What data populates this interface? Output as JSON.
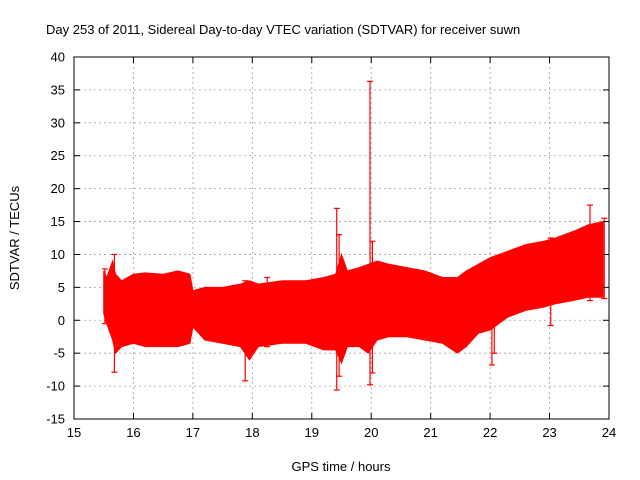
{
  "chart_data": {
    "type": "area",
    "title": "Day 253 of 2011, Sidereal Day-to-day VTEC variation (SDTVAR) for receiver suwn",
    "xlabel": "GPS time / hours",
    "ylabel": "SDTVAR / TECUs",
    "xlim": [
      15,
      24
    ],
    "ylim": [
      -15,
      40
    ],
    "xticks": [
      15,
      16,
      17,
      18,
      19,
      20,
      21,
      22,
      23,
      24
    ],
    "yticks": [
      -15,
      -10,
      -5,
      0,
      5,
      10,
      15,
      20,
      25,
      30,
      35,
      40
    ],
    "grid": true,
    "series_color": "#ff0000",
    "series": [
      {
        "name": "SDTVAR",
        "x": [
          15.5,
          15.55,
          15.65,
          15.7,
          15.8,
          16.0,
          16.2,
          16.5,
          16.75,
          16.95,
          17.0,
          17.2,
          17.5,
          17.8,
          17.95,
          18.1,
          18.5,
          18.9,
          19.2,
          19.4,
          19.5,
          19.6,
          19.8,
          19.95,
          20.1,
          20.3,
          20.6,
          20.9,
          21.2,
          21.45,
          21.6,
          21.8,
          22.0,
          22.3,
          22.6,
          22.9,
          23.1,
          23.4,
          23.65,
          23.9
        ],
        "upper": [
          7.5,
          6.5,
          9.0,
          7.0,
          6.0,
          7.0,
          7.2,
          7.0,
          7.5,
          7.0,
          4.5,
          5.0,
          5.0,
          5.5,
          6.0,
          5.5,
          6.0,
          6.0,
          6.5,
          7.0,
          10.0,
          7.5,
          8.0,
          8.5,
          9.0,
          8.5,
          8.0,
          7.5,
          6.5,
          6.5,
          7.5,
          8.5,
          9.5,
          10.5,
          11.5,
          12.0,
          12.5,
          13.5,
          14.5,
          15.0
        ],
        "lower": [
          1.0,
          -0.5,
          -3.0,
          -5.0,
          -4.0,
          -3.5,
          -4.0,
          -4.0,
          -4.0,
          -3.5,
          -1.0,
          -3.0,
          -3.5,
          -4.0,
          -6.0,
          -4.0,
          -3.5,
          -3.5,
          -4.5,
          -4.5,
          -6.5,
          -4.0,
          -4.0,
          -5.0,
          -3.0,
          -2.5,
          -2.5,
          -3.0,
          -3.5,
          -5.0,
          -4.0,
          -2.0,
          -1.5,
          0.5,
          1.5,
          2.0,
          2.5,
          3.0,
          3.5,
          3.5
        ]
      }
    ],
    "spikes": [
      {
        "x": 15.52,
        "ymin": -0.5,
        "ymax": 7.8
      },
      {
        "x": 15.68,
        "ymin": -7.9,
        "ymax": 10.0
      },
      {
        "x": 17.88,
        "ymin": -9.2,
        "ymax": 6.0
      },
      {
        "x": 18.25,
        "ymin": -4.0,
        "ymax": 6.5
      },
      {
        "x": 19.42,
        "ymin": -10.6,
        "ymax": 17.0
      },
      {
        "x": 19.46,
        "ymin": -8.5,
        "ymax": 13.0
      },
      {
        "x": 19.98,
        "ymin": -9.8,
        "ymax": 36.3
      },
      {
        "x": 20.02,
        "ymin": -8.0,
        "ymax": 12.0
      },
      {
        "x": 22.03,
        "ymin": -6.8,
        "ymax": 9.0
      },
      {
        "x": 22.07,
        "ymin": -5.0,
        "ymax": 9.5
      },
      {
        "x": 23.02,
        "ymin": -0.8,
        "ymax": 12.5
      },
      {
        "x": 23.68,
        "ymin": 3.0,
        "ymax": 17.5
      },
      {
        "x": 23.92,
        "ymin": 3.3,
        "ymax": 15.5
      }
    ]
  }
}
